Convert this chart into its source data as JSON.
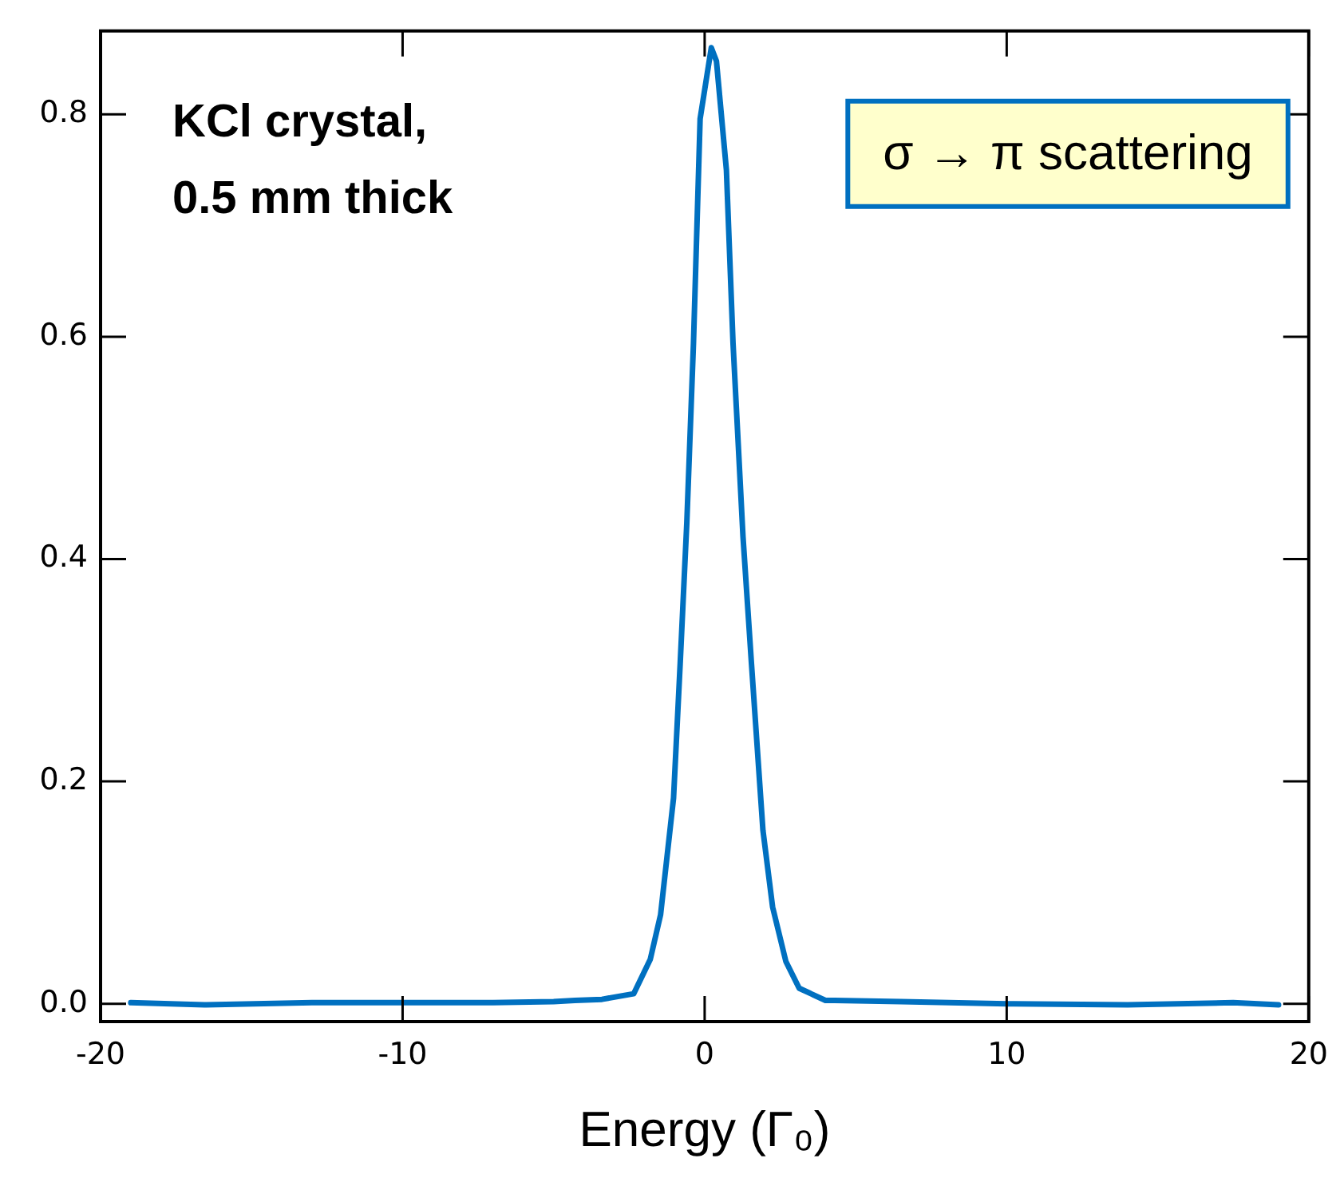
{
  "chart_data": {
    "type": "line",
    "xlabel": "Energy (Γ₀)",
    "annotations": [
      "KCl crystal,\n0.5 mm thick",
      "σ → π scattering"
    ],
    "series": [
      {
        "color": "#0070c0",
        "x": [
          -19,
          -16.5,
          -13,
          -10,
          -7,
          -5,
          -4.3,
          -3.4,
          -2.35,
          -1.8,
          -1.46,
          -1.03,
          -0.81,
          -0.59,
          -0.37,
          -0.15,
          0.22,
          0.39,
          0.72,
          0.94,
          1.27,
          1.55,
          1.93,
          2.25,
          2.69,
          3.13,
          4.0,
          4.3,
          6.5,
          10,
          14,
          17.5,
          19
        ],
        "values": [
          0.001,
          -0.001,
          0.001,
          0.001,
          0.001,
          0.002,
          0.003,
          0.004,
          0.009,
          0.04,
          0.08,
          0.185,
          0.306,
          0.433,
          0.594,
          0.796,
          0.86,
          0.848,
          0.75,
          0.594,
          0.42,
          0.306,
          0.156,
          0.087,
          0.038,
          0.014,
          0.003,
          0.003,
          0.002,
          0.0,
          -0.001,
          0.001,
          -0.001
        ]
      }
    ],
    "xlim": [
      -20,
      20
    ],
    "ylim": [
      -0.016,
      0.875
    ],
    "xticks": [
      -20,
      -10,
      0,
      10,
      20
    ],
    "yticks": [
      {
        "value": 0,
        "label": "0.0"
      },
      {
        "value": 0.2,
        "label": "0.2"
      },
      {
        "value": 0.4,
        "label": "0.4"
      },
      {
        "value": 0.6,
        "label": "0.6"
      },
      {
        "value": 0.8,
        "label": "0.8"
      }
    ],
    "grid": false,
    "legend": false,
    "marker": "none",
    "line_style": "solid"
  }
}
